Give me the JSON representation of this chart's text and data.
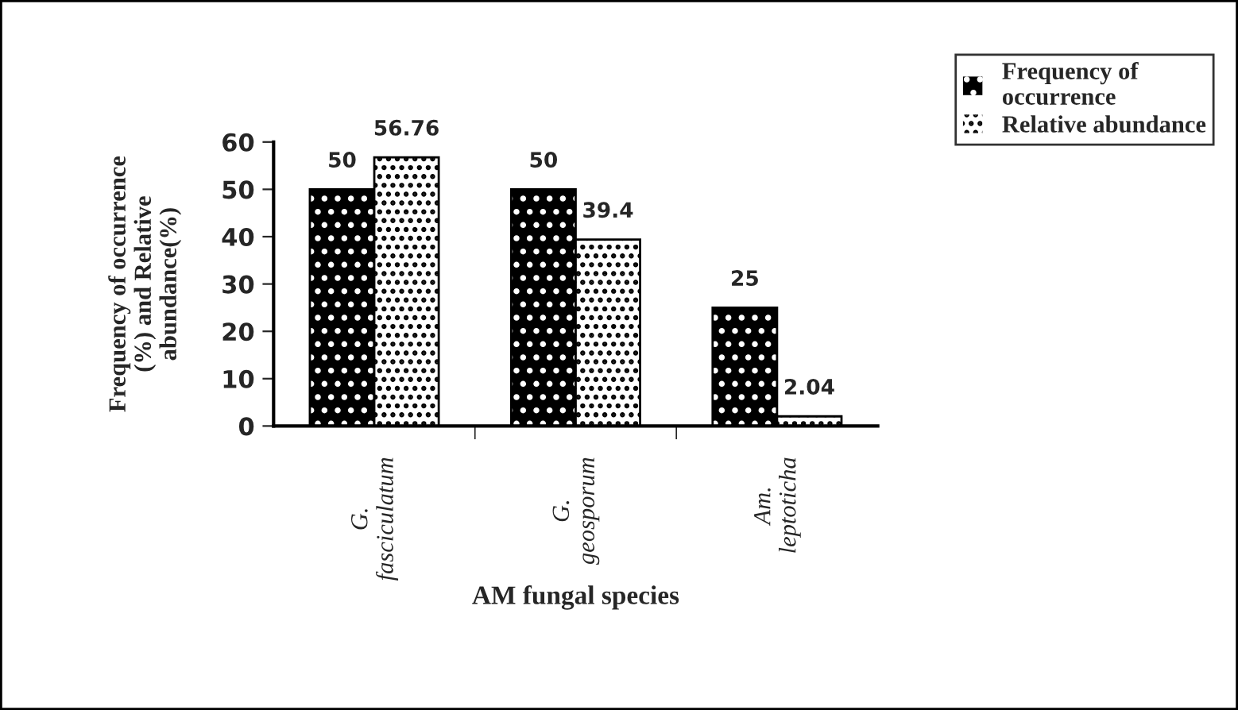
{
  "chart_data": {
    "type": "bar",
    "xlabel": "AM fungal species",
    "ylabel": "Frequency of occurrence\n(%) and Relative\nabundance(%)",
    "categories": [
      "G.\nfasciculatum",
      "G.\ngeosporum",
      "Am.\nleptoticha"
    ],
    "series": [
      {
        "name": "Frequency of\noccurrence",
        "color": "#000000",
        "values": [
          50,
          50,
          25
        ]
      },
      {
        "name": "Relative abundance",
        "color": "#ffffff",
        "values": [
          56.76,
          39.4,
          2.04
        ]
      }
    ],
    "ylim": [
      0,
      60
    ],
    "yticks": [
      0,
      10,
      20,
      30,
      40,
      50,
      60
    ],
    "data_labels": true,
    "grid": false,
    "legend": "top right"
  }
}
